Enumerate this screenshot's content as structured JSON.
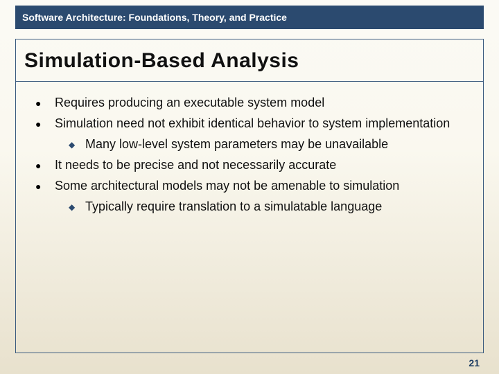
{
  "colors": {
    "header_bg": "#2b4a6f",
    "header_text": "#ffffff",
    "frame_border": "#3a5a7e",
    "body_text": "#111111",
    "lvl1_bullet": "#000000",
    "lvl2_bullet": "#2b4a6f",
    "page_num": "#1f3f63",
    "bg_gradient_top": "#fbfaf5",
    "bg_gradient_bottom": "#e8e1cd"
  },
  "typography": {
    "header_fontsize": 14,
    "title_fontsize": 30,
    "body_fontsize": 18,
    "pagenum_fontsize": 14,
    "font_family": "Verdana"
  },
  "header": {
    "text": "Software Architecture: Foundations, Theory, and Practice"
  },
  "title": "Simulation-Based Analysis",
  "bullets": [
    {
      "level": 1,
      "text": "Requires producing an executable system model"
    },
    {
      "level": 1,
      "text": "Simulation need not exhibit identical behavior to system implementation"
    },
    {
      "level": 2,
      "text": "Many low-level system parameters may be unavailable"
    },
    {
      "level": 1,
      "text": "It needs to be precise and not necessarily accurate"
    },
    {
      "level": 1,
      "text": "Some architectural models may not be amenable to simulation"
    },
    {
      "level": 2,
      "text": "Typically require translation to a simulatable language"
    }
  ],
  "page_number": "21",
  "glyphs": {
    "lvl1_bullet": "●",
    "lvl2_bullet": "◆"
  }
}
